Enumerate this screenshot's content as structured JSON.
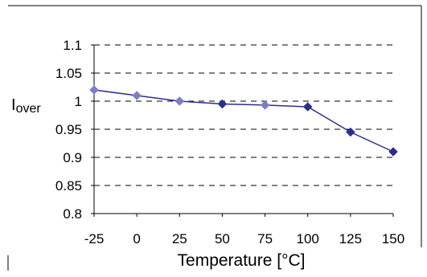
{
  "chart_data": {
    "type": "line",
    "title": "",
    "xlabel": "Temperature [°C]",
    "ylabel": {
      "main": "I",
      "subscript": "over"
    },
    "x": [
      -25,
      0,
      25,
      50,
      75,
      100,
      125,
      150
    ],
    "x_tick_labels": [
      "-25",
      "0",
      "25",
      "50",
      "75",
      "100",
      "125",
      "150"
    ],
    "y_tick_labels": [
      "0.8",
      "0.85",
      "0.9",
      "0.95",
      "1",
      "1.05",
      "1.1"
    ],
    "y_ticks": [
      0.8,
      0.85,
      0.9,
      0.95,
      1.0,
      1.05,
      1.1
    ],
    "xlim": [
      -25,
      150
    ],
    "ylim": [
      0.8,
      1.1
    ],
    "grid": "horizontal-dashed",
    "legend": "none",
    "series": [
      {
        "values": [
          1.02,
          1.01,
          1.0,
          0.995,
          0.993,
          0.99,
          0.945,
          0.91
        ]
      }
    ],
    "colors": {
      "line": "#2b2e8c",
      "marker": "#2b2e8c",
      "marker_faded": "#7a7ec6",
      "grid": "#000000",
      "frame": "#000000"
    }
  }
}
